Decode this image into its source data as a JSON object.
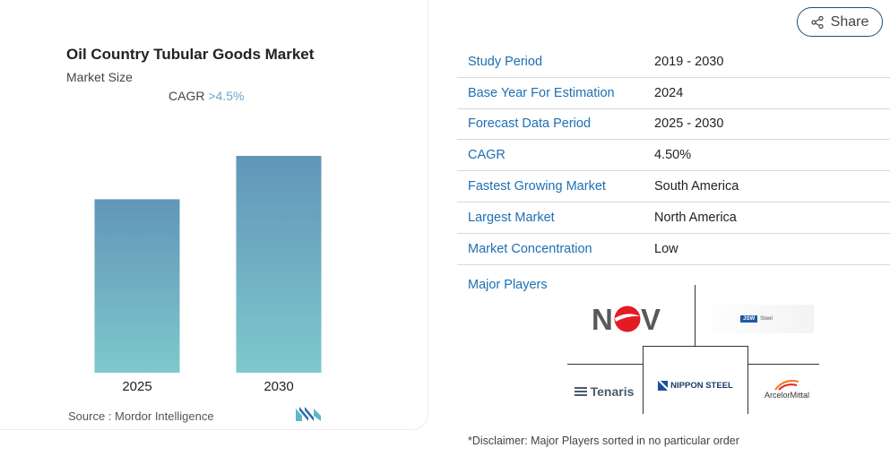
{
  "chart": {
    "title": "Oil Country Tubular Goods Market",
    "subtitle": "Market Size",
    "cagr_label": "CAGR",
    "cagr_value": ">4.5%",
    "source": "Source :  Mordor Intelligence"
  },
  "chart_data": {
    "type": "bar",
    "categories": [
      "2025",
      "2030"
    ],
    "values": [
      0.8,
      1.0
    ],
    "title": "Oil Country Tubular Goods Market",
    "subtitle": "Market Size",
    "colors": {
      "top": "#6196b8",
      "bottom": "#7ec8cc"
    }
  },
  "share": {
    "label": "Share",
    "icon": "share-icon"
  },
  "table": {
    "rows": [
      {
        "key": "Study Period",
        "value": "2019 - 2030"
      },
      {
        "key": "Base Year For Estimation",
        "value": "2024"
      },
      {
        "key": "Forecast Data Period",
        "value": "2025 - 2030"
      },
      {
        "key": "CAGR",
        "value": "4.50%"
      },
      {
        "key": "Fastest Growing Market",
        "value": "South America"
      },
      {
        "key": "Largest Market",
        "value": "North America"
      },
      {
        "key": "Market Concentration",
        "value": "Low"
      }
    ]
  },
  "players": {
    "label": "Major Players",
    "logos": {
      "nov": "NOV",
      "jsw": "JSW",
      "jsw_suffix": "Steel",
      "tenaris": "Tenaris",
      "nippon": "NIPPON STEEL",
      "arcelor": "ArcelorMittal"
    }
  },
  "disclaimer": "*Disclaimer: Major Players sorted in no particular order",
  "colors": {
    "accent": "#1f6fb2",
    "border": "#1f4e79"
  }
}
